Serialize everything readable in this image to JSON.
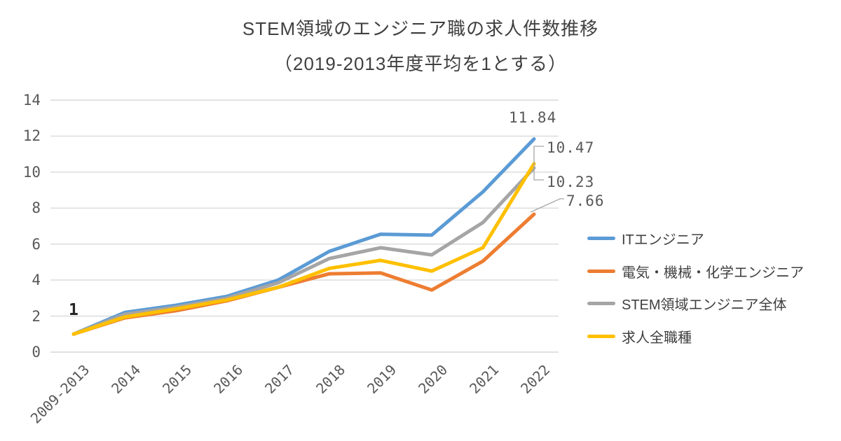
{
  "chart_data": {
    "type": "line",
    "title_line1": "STEM領域のエンジニア職の求人件数推移",
    "title_line2": "（2019-2013年度平均を1とする）",
    "categories": [
      "2009-2013",
      "2014",
      "2015",
      "2016",
      "2017",
      "2018",
      "2019",
      "2020",
      "2021",
      "2022"
    ],
    "ylim": [
      0,
      14
    ],
    "yticks": [
      0,
      2,
      4,
      6,
      8,
      10,
      12,
      14
    ],
    "grid": true,
    "legend_position": "right",
    "series": [
      {
        "key": "it-engineer",
        "name": "ITエンジニア",
        "color": "#5B9BD5",
        "values": [
          1,
          2.2,
          2.6,
          3.1,
          4.0,
          5.6,
          6.55,
          6.5,
          8.9,
          11.84
        ],
        "end_label": "11.84"
      },
      {
        "key": "ee-mech-chem-engineer",
        "name": "電気・機械・化学エンジニア",
        "color": "#ED7D31",
        "values": [
          1,
          1.9,
          2.3,
          2.85,
          3.6,
          4.35,
          4.4,
          3.45,
          5.05,
          7.66
        ],
        "end_label": "7.66"
      },
      {
        "key": "stem-total",
        "name": "STEM領域エンジニア全体",
        "color": "#A5A5A5",
        "values": [
          1,
          2.1,
          2.5,
          3.0,
          3.85,
          5.2,
          5.8,
          5.4,
          7.2,
          10.23
        ],
        "end_label": "10.23"
      },
      {
        "key": "all-occupations",
        "name": "求人全職種",
        "color": "#FFC000",
        "values": [
          1,
          1.95,
          2.4,
          2.9,
          3.6,
          4.65,
          5.1,
          4.5,
          5.8,
          10.47
        ],
        "end_label": "10.47"
      }
    ],
    "annotations": [
      {
        "text": "1",
        "at_category": "2009-2013",
        "value": 1
      }
    ],
    "colors": {
      "grid": "#D9D9D9",
      "axis_text": "#595959",
      "title_text": "#404040",
      "data_label": "#595959",
      "annotation_text": "#262626",
      "leader_line": "#A6A6A6",
      "background": "#FFFFFF"
    }
  }
}
